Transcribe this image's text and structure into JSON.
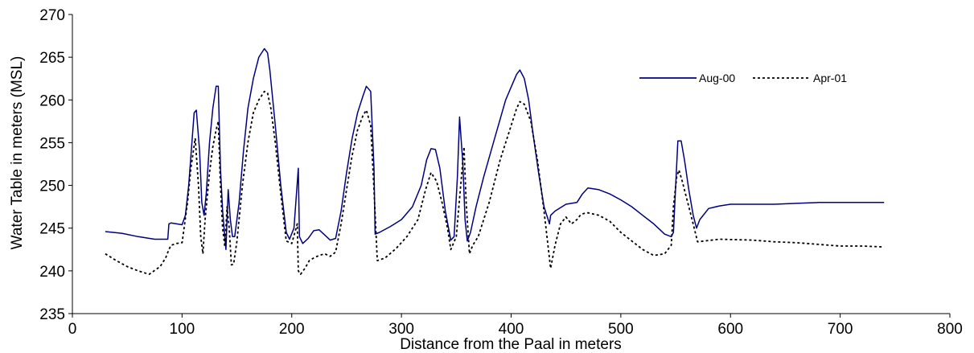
{
  "chart_data": {
    "type": "line",
    "title": "",
    "xlabel": "Distance from the Paal in meters",
    "ylabel": "Water Table in meters (MSL)",
    "xlim": [
      0,
      800
    ],
    "ylim": [
      235,
      270
    ],
    "xticks": [
      0,
      100,
      200,
      300,
      400,
      500,
      600,
      700,
      800
    ],
    "yticks": [
      235,
      240,
      245,
      250,
      255,
      260,
      265,
      270
    ],
    "grid": false,
    "legend_position": "top-right",
    "series": [
      {
        "name": "Aug-00",
        "color": "#000080",
        "style": "solid",
        "x": [
          30,
          45,
          60,
          75,
          87,
          88,
          90,
          100,
          103,
          106,
          109,
          111,
          113,
          116,
          118,
          120,
          122,
          125,
          128,
          131,
          133,
          135,
          137,
          140,
          142,
          144,
          146,
          148,
          152,
          156,
          160,
          165,
          170,
          175,
          178,
          180,
          185,
          190,
          195,
          198,
          202,
          206,
          207,
          210,
          215,
          220,
          225,
          230,
          235,
          240,
          245,
          250,
          255,
          260,
          265,
          268,
          272,
          275,
          276,
          280,
          290,
          300,
          310,
          318,
          323,
          327,
          331,
          335,
          340,
          345,
          348,
          351,
          353,
          356,
          358,
          360,
          363,
          368,
          375,
          385,
          395,
          400,
          405,
          408,
          412,
          416,
          420,
          425,
          430,
          435,
          436,
          440,
          450,
          460,
          465,
          470,
          480,
          490,
          500,
          510,
          520,
          530,
          540,
          546,
          548,
          550,
          552,
          555,
          558,
          562,
          566,
          569,
          572,
          580,
          590,
          600,
          620,
          640,
          660,
          680,
          700,
          720,
          740
        ],
        "values": [
          244.6,
          244.4,
          244.0,
          243.7,
          243.7,
          245.5,
          245.6,
          245.4,
          246.5,
          250.0,
          255.0,
          258.5,
          258.8,
          254.0,
          248.0,
          246.5,
          249.0,
          255.0,
          259.0,
          261.6,
          261.6,
          252.0,
          247.0,
          242.5,
          249.5,
          246.0,
          244.0,
          244.0,
          248.0,
          254.0,
          259.0,
          262.5,
          265.0,
          266.0,
          265.5,
          263.5,
          257.0,
          250.0,
          244.5,
          243.7,
          245.0,
          252.0,
          244.0,
          243.2,
          243.8,
          244.7,
          244.8,
          244.2,
          243.6,
          243.8,
          247.0,
          251.5,
          255.5,
          258.5,
          260.5,
          261.6,
          261.0,
          252.0,
          244.3,
          244.5,
          245.2,
          246.0,
          247.5,
          250.0,
          253.0,
          254.3,
          254.2,
          252.0,
          247.0,
          243.6,
          244.0,
          251.0,
          258.0,
          252.5,
          246.0,
          243.5,
          244.5,
          247.5,
          251.0,
          255.5,
          260.0,
          261.5,
          263.0,
          263.5,
          262.5,
          260.0,
          256.0,
          251.5,
          247.5,
          245.5,
          246.5,
          247.0,
          247.8,
          248.0,
          249.0,
          249.7,
          249.5,
          249.0,
          248.3,
          247.5,
          246.5,
          245.5,
          244.3,
          244.0,
          244.5,
          250.0,
          255.2,
          255.2,
          253.0,
          249.5,
          246.5,
          245.0,
          246.0,
          247.3,
          247.6,
          247.8,
          247.8,
          247.8,
          247.9,
          248.0,
          248.0,
          248.0,
          248.0
        ]
      },
      {
        "name": "Apr-01",
        "color": "#000000",
        "style": "dashed",
        "x": [
          30,
          40,
          50,
          60,
          70,
          80,
          85,
          88,
          90,
          95,
          100,
          105,
          108,
          112,
          115,
          117,
          119,
          121,
          125,
          128,
          131,
          133,
          135,
          137,
          139,
          141,
          143,
          145,
          147,
          150,
          155,
          160,
          165,
          170,
          175,
          178,
          181,
          185,
          190,
          195,
          200,
          205,
          206,
          208,
          212,
          216,
          220,
          225,
          230,
          235,
          240,
          245,
          250,
          255,
          260,
          265,
          268,
          272,
          275,
          278,
          285,
          295,
          305,
          315,
          322,
          327,
          332,
          337,
          342,
          345,
          350,
          354,
          357,
          359,
          362,
          365,
          370,
          380,
          390,
          400,
          405,
          408,
          412,
          418,
          424,
          430,
          434,
          436,
          440,
          445,
          450,
          455,
          460,
          463,
          466,
          470,
          480,
          490,
          500,
          510,
          520,
          530,
          540,
          546,
          548,
          551,
          553,
          556,
          560,
          565,
          570,
          590,
          620,
          640,
          660,
          680,
          700,
          720,
          740
        ],
        "values": [
          242.0,
          241.2,
          240.5,
          240.0,
          239.6,
          240.5,
          241.5,
          242.5,
          243.0,
          243.2,
          243.3,
          248.0,
          252.0,
          255.5,
          250.0,
          244.0,
          242.0,
          246.0,
          251.5,
          254.5,
          256.5,
          257.5,
          250.0,
          245.0,
          242.8,
          247.5,
          245.0,
          240.7,
          240.8,
          243.5,
          250.0,
          255.0,
          258.5,
          260.0,
          261.0,
          260.8,
          259.0,
          255.0,
          249.0,
          243.5,
          243.2,
          245.5,
          240.0,
          239.6,
          240.3,
          241.2,
          241.5,
          241.8,
          242.0,
          241.7,
          242.2,
          245.5,
          249.5,
          253.5,
          256.5,
          258.2,
          258.8,
          257.0,
          249.5,
          241.2,
          241.5,
          242.6,
          244.0,
          246.0,
          249.5,
          251.5,
          250.5,
          248.0,
          245.0,
          242.5,
          244.0,
          250.0,
          254.5,
          248.0,
          242.0,
          243.0,
          244.0,
          248.0,
          253.0,
          257.0,
          259.0,
          259.8,
          259.5,
          257.5,
          253.0,
          247.0,
          242.5,
          240.3,
          243.0,
          245.5,
          246.3,
          245.5,
          246.0,
          246.5,
          246.7,
          246.8,
          246.5,
          245.8,
          244.5,
          243.5,
          242.5,
          241.8,
          242.0,
          243.0,
          247.5,
          251.0,
          251.8,
          250.5,
          248.5,
          246.0,
          243.4,
          243.7,
          243.6,
          243.4,
          243.3,
          243.1,
          242.9,
          242.9,
          242.8
        ]
      }
    ]
  }
}
